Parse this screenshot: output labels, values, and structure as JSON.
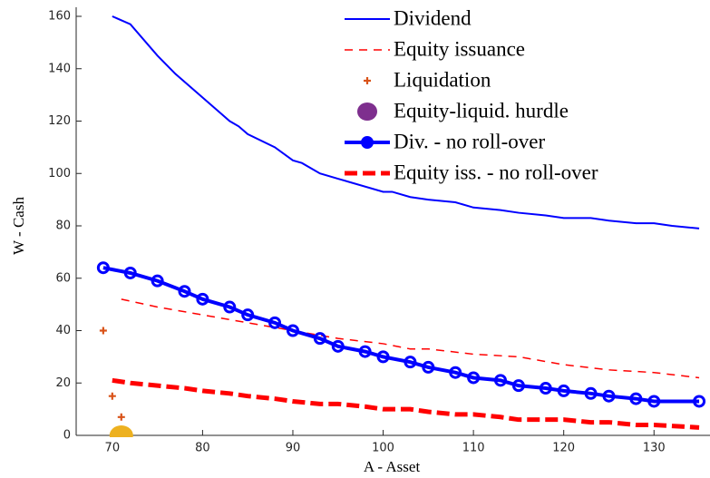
{
  "chart_data": {
    "type": "line",
    "xlabel": "A - Asset",
    "ylabel": "W - Cash",
    "xlim": [
      66,
      136
    ],
    "ylim": [
      0,
      160
    ],
    "xticks": [
      70,
      80,
      90,
      100,
      110,
      120,
      130
    ],
    "yticks": [
      0,
      20,
      40,
      60,
      80,
      100,
      120,
      140,
      160
    ],
    "legend": "upper right",
    "series": [
      {
        "name": "Dividend",
        "color": "#0000ff",
        "style": "solid",
        "width": 2,
        "x": [
          70,
          72,
          75,
          77,
          80,
          83,
          84,
          85,
          88,
          90,
          91,
          93,
          95,
          100,
          101,
          103,
          105,
          108,
          110,
          113,
          115,
          118,
          120,
          123,
          125,
          128,
          130,
          132,
          135
        ],
        "values": [
          160,
          157,
          145,
          138,
          129,
          120,
          118,
          115,
          110,
          105,
          104,
          100,
          98,
          93,
          93,
          91,
          90,
          89,
          87,
          86,
          85,
          84,
          83,
          83,
          82,
          81,
          81,
          80,
          79
        ]
      },
      {
        "name": "Equity issuance",
        "color": "#ff0000",
        "style": "dashed",
        "width": 1.5,
        "x": [
          71,
          75,
          80,
          85,
          90,
          95,
          100,
          103,
          105,
          110,
          115,
          120,
          125,
          130,
          135
        ],
        "values": [
          52,
          49,
          46,
          43,
          40,
          37,
          35,
          33,
          33,
          31,
          30,
          27,
          25,
          24,
          22
        ]
      },
      {
        "name": "Liquidation",
        "color": "#d95319",
        "style": "plus",
        "x": [
          69,
          70,
          71
        ],
        "values": [
          40,
          15,
          7
        ]
      },
      {
        "name": "Equity-liquid. hurdle",
        "color": "#7e2f8e",
        "marker_color": "#edb120",
        "style": "bigdot",
        "x": [
          71
        ],
        "values": [
          0
        ]
      },
      {
        "name": "Div. - no roll-over",
        "color": "#0000ff",
        "style": "solid-dots",
        "width": 4,
        "x": [
          69,
          72,
          75,
          78,
          80,
          83,
          85,
          88,
          90,
          93,
          95,
          98,
          100,
          103,
          105,
          108,
          110,
          113,
          115,
          118,
          120,
          123,
          125,
          128,
          130,
          135
        ],
        "values": [
          64,
          62,
          59,
          55,
          52,
          49,
          46,
          43,
          40,
          37,
          34,
          32,
          30,
          28,
          26,
          24,
          22,
          21,
          19,
          18,
          17,
          16,
          15,
          14,
          13,
          13
        ]
      },
      {
        "name": "Equity iss. - no roll-over",
        "color": "#ff0000",
        "style": "dashed",
        "width": 5,
        "x": [
          70,
          72,
          75,
          78,
          80,
          83,
          85,
          88,
          90,
          93,
          95,
          98,
          100,
          103,
          105,
          108,
          110,
          113,
          115,
          118,
          120,
          123,
          125,
          128,
          130,
          135
        ],
        "values": [
          21,
          20,
          19,
          18,
          17,
          16,
          15,
          14,
          13,
          12,
          12,
          11,
          10,
          10,
          9,
          8,
          8,
          7,
          6,
          6,
          6,
          5,
          5,
          4,
          4,
          3
        ]
      }
    ]
  }
}
